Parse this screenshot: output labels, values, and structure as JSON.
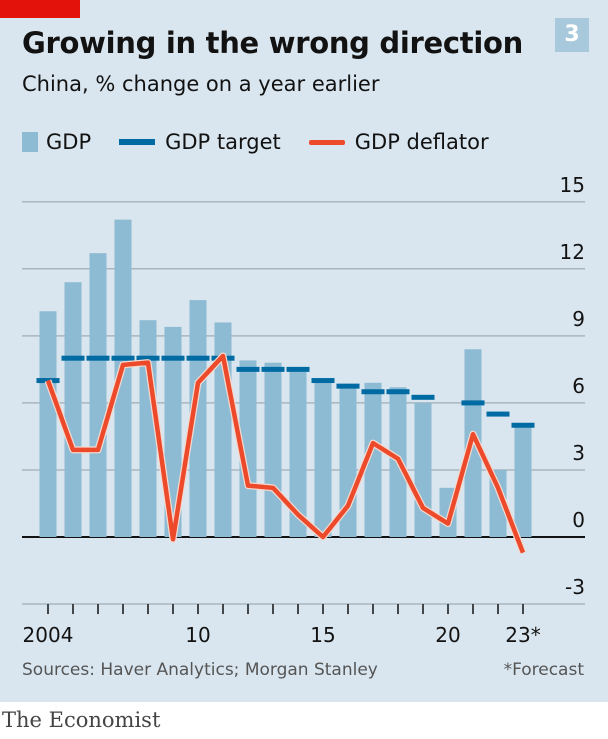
{
  "header": {
    "title": "Growing in the wrong direction",
    "subtitle": "China, % change on a year earlier",
    "badge": "3"
  },
  "footer": {
    "source": "Sources: Haver Analytics; Morgan Stanley",
    "note": "*Forecast",
    "brand": "The Economist"
  },
  "colors": {
    "gdp": "#8dbbd3",
    "target": "#006ba2",
    "deflator": "#ec4a2b",
    "background": "#d9e6ef",
    "brand_red": "#e3120b"
  },
  "chart_data": {
    "type": "bar",
    "title": "Growing in the wrong direction",
    "subtitle": "China, % change on a year earlier",
    "x": [
      2004,
      2005,
      2006,
      2007,
      2008,
      2009,
      2010,
      2011,
      2012,
      2013,
      2014,
      2015,
      2016,
      2017,
      2018,
      2019,
      2020,
      2021,
      2022,
      2023
    ],
    "x_tick_labels": [
      {
        "year": 2004,
        "label": "2004"
      },
      {
        "year": 2010,
        "label": "10"
      },
      {
        "year": 2015,
        "label": "15"
      },
      {
        "year": 2020,
        "label": "20"
      },
      {
        "year": 2023,
        "label": "23*"
      }
    ],
    "y_ticks": [
      15,
      12,
      9,
      6,
      3,
      0,
      -3
    ],
    "ylim": [
      -3,
      15
    ],
    "grid": true,
    "legend_position": "top",
    "legend": [
      "GDP",
      "GDP target",
      "GDP deflator"
    ],
    "series": [
      {
        "name": "GDP",
        "kind": "bar",
        "values": [
          10.1,
          11.4,
          12.7,
          14.2,
          9.7,
          9.4,
          10.6,
          9.6,
          7.9,
          7.8,
          7.4,
          7.0,
          6.8,
          6.9,
          6.7,
          6.0,
          2.2,
          8.4,
          3.0,
          5.0
        ]
      },
      {
        "name": "GDP target",
        "kind": "dash",
        "values": [
          7.0,
          8,
          8,
          8,
          8,
          8,
          8,
          8,
          7.5,
          7.5,
          7.5,
          7.0,
          6.75,
          6.5,
          6.5,
          6.25,
          null,
          6.0,
          5.5,
          5.0
        ]
      },
      {
        "name": "GDP deflator",
        "kind": "line",
        "values": [
          7.0,
          3.9,
          3.9,
          7.7,
          7.8,
          -0.1,
          6.9,
          8.1,
          2.3,
          2.2,
          1.0,
          0.0,
          1.4,
          4.2,
          3.5,
          1.3,
          0.6,
          4.6,
          2.2,
          -0.7
        ]
      }
    ]
  }
}
